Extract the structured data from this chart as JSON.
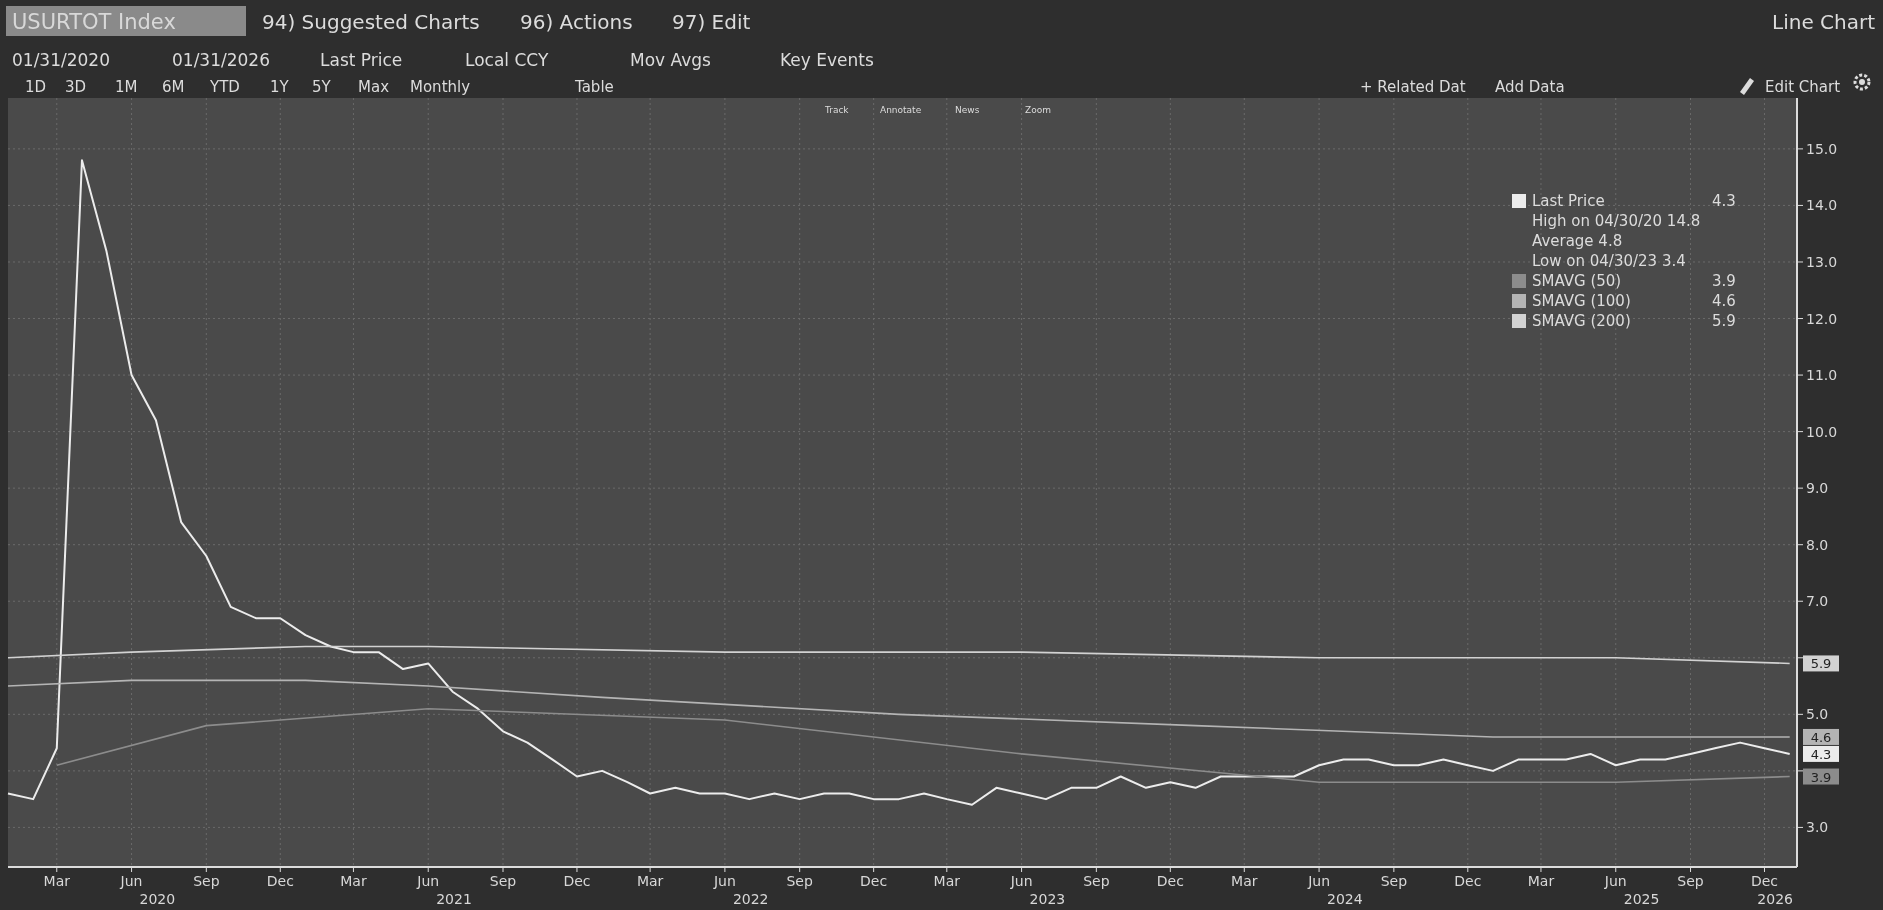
{
  "chart_data": {
    "type": "line",
    "title": "USURTOT Index",
    "x": [
      "2020-01",
      "2020-02",
      "2020-03",
      "2020-04",
      "2020-05",
      "2020-06",
      "2020-07",
      "2020-08",
      "2020-09",
      "2020-10",
      "2020-11",
      "2020-12",
      "2021-01",
      "2021-02",
      "2021-03",
      "2021-04",
      "2021-05",
      "2021-06",
      "2021-07",
      "2021-08",
      "2021-09",
      "2021-10",
      "2021-11",
      "2021-12",
      "2022-01",
      "2022-02",
      "2022-03",
      "2022-04",
      "2022-05",
      "2022-06",
      "2022-07",
      "2022-08",
      "2022-09",
      "2022-10",
      "2022-11",
      "2022-12",
      "2023-01",
      "2023-02",
      "2023-03",
      "2023-04",
      "2023-05",
      "2023-06",
      "2023-07",
      "2023-08",
      "2023-09",
      "2023-10",
      "2023-11",
      "2023-12",
      "2024-01",
      "2024-02",
      "2024-03",
      "2024-04",
      "2024-05",
      "2024-06",
      "2024-07",
      "2024-08",
      "2024-09",
      "2024-10",
      "2024-11",
      "2024-12",
      "2025-01",
      "2025-02",
      "2025-03",
      "2025-04",
      "2025-05",
      "2025-06",
      "2025-07",
      "2025-08",
      "2025-09",
      "2025-10",
      "2025-11",
      "2025-12",
      "2026-01"
    ],
    "series": [
      {
        "name": "Last Price",
        "color": "#ececec",
        "values": [
          3.6,
          3.5,
          4.4,
          14.8,
          13.2,
          11.0,
          10.2,
          8.4,
          7.8,
          6.9,
          6.7,
          6.7,
          6.4,
          6.2,
          6.1,
          6.1,
          5.8,
          5.9,
          5.4,
          5.1,
          4.7,
          4.5,
          4.2,
          3.9,
          4.0,
          3.8,
          3.6,
          3.7,
          3.6,
          3.6,
          3.5,
          3.6,
          3.5,
          3.6,
          3.6,
          3.5,
          3.5,
          3.6,
          3.5,
          3.4,
          3.7,
          3.6,
          3.5,
          3.7,
          3.7,
          3.9,
          3.7,
          3.8,
          3.7,
          3.9,
          3.9,
          3.9,
          3.9,
          4.1,
          4.2,
          4.2,
          4.1,
          4.1,
          4.2,
          4.1,
          4.0,
          4.2,
          4.2,
          4.2,
          4.3,
          4.1,
          4.2,
          4.2,
          4.3,
          4.4,
          4.5,
          4.4,
          4.3
        ],
        "value_labels": [
          null,
          null,
          null,
          null,
          null,
          null,
          null,
          null,
          null,
          null,
          null,
          null,
          null,
          null,
          null,
          null,
          null,
          null,
          null,
          null,
          null,
          null,
          null,
          null,
          null,
          null,
          null,
          null,
          null,
          null,
          null,
          null,
          null,
          null,
          null,
          null,
          null,
          null,
          null,
          null,
          null,
          null,
          null,
          null,
          null,
          null,
          null,
          null,
          null,
          null,
          null,
          null,
          null,
          null,
          null,
          null,
          null,
          null,
          null,
          null,
          null,
          null,
          null,
          null,
          null,
          null,
          null,
          null,
          null,
          null,
          null,
          null,
          "4.3"
        ]
      },
      {
        "name": "SMAVG (50)",
        "color": "#8c8c8c",
        "x": [
          "2020-03",
          "2020-09",
          "2021-06",
          "2022-06",
          "2023-06",
          "2024-06",
          "2025-06",
          "2026-01"
        ],
        "values": [
          4.1,
          4.8,
          5.1,
          4.9,
          4.3,
          3.8,
          3.8,
          3.9
        ],
        "value_labels": [
          null,
          null,
          null,
          null,
          null,
          null,
          null,
          "3.9"
        ]
      },
      {
        "name": "SMAVG (100)",
        "color": "#b4b4b4",
        "x": [
          "2020-01",
          "2020-06",
          "2021-01",
          "2021-06",
          "2022-01",
          "2023-01",
          "2024-01",
          "2025-01",
          "2026-01"
        ],
        "values": [
          5.5,
          5.6,
          5.6,
          5.5,
          5.3,
          5.0,
          4.8,
          4.6,
          4.6
        ],
        "value_labels": [
          null,
          null,
          null,
          null,
          null,
          null,
          null,
          null,
          "4.6"
        ]
      },
      {
        "name": "SMAVG (200)",
        "color": "#d2d2d2",
        "x": [
          "2020-01",
          "2020-06",
          "2021-01",
          "2021-06",
          "2022-06",
          "2023-06",
          "2024-06",
          "2025-06",
          "2026-01"
        ],
        "values": [
          6.0,
          6.1,
          6.2,
          6.2,
          6.1,
          6.1,
          6.0,
          6.0,
          5.9
        ],
        "value_labels": [
          null,
          null,
          null,
          null,
          null,
          null,
          null,
          null,
          "5.9"
        ]
      }
    ],
    "xlim": [
      "2020-01",
      "2026-01-10"
    ],
    "xticks": [
      {
        "value": "2020-03",
        "label": "Mar"
      },
      {
        "value": "2020-06",
        "label": "Jun"
      },
      {
        "value": "2020-09",
        "label": "Sep"
      },
      {
        "value": "2020-12",
        "label": "Dec"
      },
      {
        "value": "2021-03",
        "label": "Mar"
      },
      {
        "value": "2021-06",
        "label": "Jun"
      },
      {
        "value": "2021-09",
        "label": "Sep"
      },
      {
        "value": "2021-12",
        "label": "Dec"
      },
      {
        "value": "2022-03",
        "label": "Mar"
      },
      {
        "value": "2022-06",
        "label": "Jun"
      },
      {
        "value": "2022-09",
        "label": "Sep"
      },
      {
        "value": "2022-12",
        "label": "Dec"
      },
      {
        "value": "2023-03",
        "label": "Mar"
      },
      {
        "value": "2023-06",
        "label": "Jun"
      },
      {
        "value": "2023-09",
        "label": "Sep"
      },
      {
        "value": "2023-12",
        "label": "Dec"
      },
      {
        "value": "2024-03",
        "label": "Mar"
      },
      {
        "value": "2024-06",
        "label": "Jun"
      },
      {
        "value": "2024-09",
        "label": "Sep"
      },
      {
        "value": "2024-12",
        "label": "Dec"
      },
      {
        "value": "2025-03",
        "label": "Mar"
      },
      {
        "value": "2025-06",
        "label": "Jun"
      },
      {
        "value": "2025-09",
        "label": "Sep"
      },
      {
        "value": "2025-12",
        "label": "Dec"
      }
    ],
    "ylim": [
      2.3,
      15.9
    ],
    "yticks": [
      {
        "value": 3,
        "label": "3.0"
      },
      {
        "value": 4,
        "label": null
      },
      {
        "value": 5,
        "label": "5.0"
      },
      {
        "value": 6,
        "label": null
      },
      {
        "value": 7,
        "label": "7.0"
      },
      {
        "value": 8,
        "label": "8.0"
      },
      {
        "value": 9,
        "label": "9.0"
      },
      {
        "value": 10,
        "label": "10.0"
      },
      {
        "value": 11,
        "label": "11.0"
      },
      {
        "value": 12,
        "label": "12.0"
      },
      {
        "value": 13,
        "label": "13.0"
      },
      {
        "value": 14,
        "label": "14.0"
      },
      {
        "value": 15,
        "label": "15.0"
      }
    ],
    "grid": true,
    "legend": "top right",
    "annotations": [
      "High on 04/30/20 14.8",
      "Average 4.8",
      "Low on 04/30/23 3.4",
      "94) Suggested Charts",
      "96) Actions",
      "97) Edit",
      "Line Chart",
      "01/31/2020",
      "01/31/2026",
      "Last Price",
      "Local CCY",
      "Mov Avgs",
      "Key Events",
      "1D",
      "3D",
      "1M",
      "6M",
      "YTD",
      "1Y",
      "5Y",
      "Max",
      "Monthly",
      "Table",
      "+ Related Dat",
      "Add Data",
      "Edit Chart",
      "Track",
      "Annotate",
      "News",
      "Zoom",
      "2020",
      "2021",
      "2022",
      "2023",
      "2024",
      "2025",
      "2026"
    ]
  }
}
